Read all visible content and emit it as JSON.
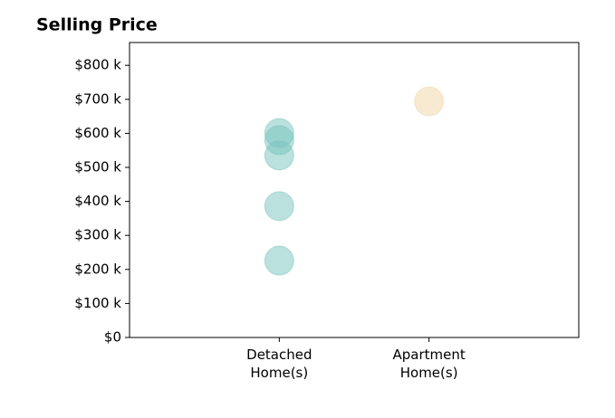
{
  "chart_data": {
    "type": "strip",
    "title": "Selling Price",
    "categories": [
      "Detached\nHome(s)",
      "Apartment\nHome(s)"
    ],
    "values": [
      [
        601,
        580,
        535,
        386,
        226
      ],
      [
        694
      ]
    ],
    "colors": [
      "#75c3bb",
      "#f0d6a4"
    ],
    "alpha": 0.5,
    "ylim": [
      0,
      867
    ],
    "yticks": [
      {
        "value": 0,
        "label": "$0"
      },
      {
        "value": 100,
        "label": "$100 k"
      },
      {
        "value": 200,
        "label": "$200 k"
      },
      {
        "value": 300,
        "label": "$300 k"
      },
      {
        "value": 400,
        "label": "$400 k"
      },
      {
        "value": 500,
        "label": "$500 k"
      },
      {
        "value": 600,
        "label": "$600 k"
      },
      {
        "value": 700,
        "label": "$700 k"
      },
      {
        "value": 800,
        "label": "$800 k"
      }
    ],
    "grid": false
  }
}
